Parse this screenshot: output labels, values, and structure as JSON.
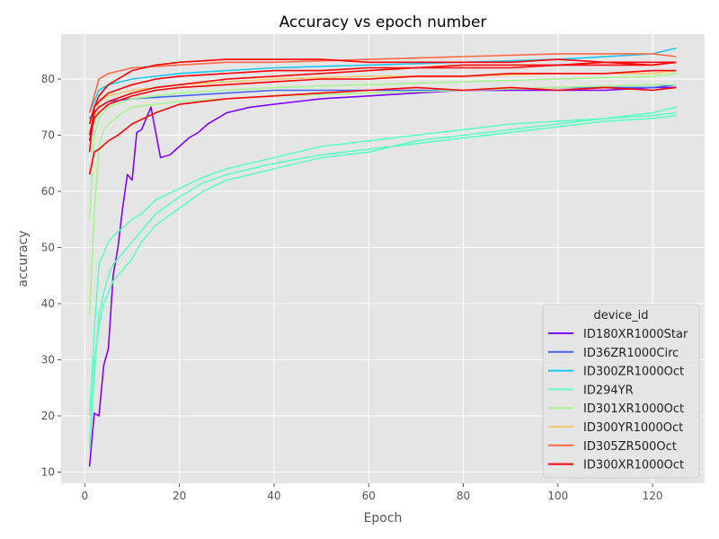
{
  "chart_data": {
    "type": "line",
    "title": "Accuracy vs epoch number",
    "xlabel": "Epoch",
    "ylabel": "accuracy",
    "xlim": [
      -5,
      131
    ],
    "ylim": [
      8,
      88
    ],
    "xticks": [
      0,
      20,
      40,
      60,
      80,
      100,
      120
    ],
    "yticks": [
      10,
      20,
      30,
      40,
      50,
      60,
      70,
      80
    ],
    "grid": true,
    "legend": {
      "title": "device_id",
      "placement": "lower-right",
      "entries": [
        {
          "name": "ID180XR1000Star",
          "color": "#8000ff"
        },
        {
          "name": "ID36ZR1000Circ",
          "color": "#4062fa"
        },
        {
          "name": "ID300ZR1000Oct",
          "color": "#1ac7f0"
        },
        {
          "name": "ID294YR",
          "color": "#5effc4"
        },
        {
          "name": "ID301XR1000Oct",
          "color": "#a6f68f"
        },
        {
          "name": "ID300YR1000Oct",
          "color": "#f6c76b"
        },
        {
          "name": "ID305ZR500Oct",
          "color": "#ff6a44"
        },
        {
          "name": "ID300XR1000Oct",
          "color": "#ff0000"
        }
      ]
    },
    "series": [
      {
        "name": "ID180XR1000Star",
        "color": "#8000ff",
        "x": [
          1,
          2,
          3,
          4,
          5,
          6,
          7,
          8,
          9,
          10,
          11,
          12,
          14,
          16,
          18,
          20,
          22,
          24,
          26,
          28,
          30,
          35,
          40,
          45,
          50,
          60,
          70,
          80,
          90,
          100,
          110,
          120,
          125
        ],
        "y": [
          11,
          20.5,
          20,
          29,
          32,
          45,
          50,
          57,
          63,
          62,
          70.5,
          71,
          75,
          66,
          66.5,
          68,
          69.5,
          70.5,
          72,
          73,
          74,
          75,
          75.5,
          76,
          76.5,
          77,
          77.5,
          78,
          78,
          78,
          78,
          78.5,
          78.5
        ]
      },
      {
        "name": "ID36ZR1000Circ",
        "color": "#4062fa",
        "x": [
          1,
          3,
          5,
          10,
          20,
          30,
          40,
          60,
          80,
          100,
          120,
          125
        ],
        "y": [
          73,
          75,
          76,
          76.5,
          77,
          77.5,
          78,
          78,
          78,
          78.5,
          78.5,
          79
        ]
      },
      {
        "name": "ID300ZR1000Oct",
        "color": "#1ac7f0",
        "x": [
          1,
          3,
          5,
          10,
          20,
          30,
          40,
          60,
          80,
          100,
          120,
          125
        ],
        "y": [
          74,
          78,
          79,
          80,
          81,
          81.5,
          82,
          82.5,
          83,
          83.5,
          84.5,
          85.5
        ]
      },
      {
        "name": "ID294YR",
        "color": "#5effc4",
        "x": [
          1,
          2,
          3,
          4,
          5,
          6,
          8,
          10,
          12,
          15,
          20,
          25,
          30,
          40,
          50,
          60,
          70,
          80,
          90,
          100,
          110,
          120,
          125
        ],
        "y": [
          15,
          27,
          38,
          42,
          45,
          47,
          49,
          51,
          53,
          56,
          59,
          61.5,
          63,
          65,
          66.5,
          67.5,
          68.5,
          69.5,
          70.5,
          71.5,
          72.5,
          73,
          73.5
        ]
      },
      {
        "name": "ID294YR",
        "color": "#5effc4",
        "x": [
          1,
          2,
          3,
          4,
          5,
          6,
          8,
          10,
          12,
          15,
          20,
          25,
          30,
          40,
          50,
          60,
          70,
          80,
          90,
          100,
          110,
          120,
          125
        ],
        "y": [
          20,
          35,
          47,
          49,
          51,
          52,
          53.5,
          55,
          56,
          58.5,
          60.5,
          62.5,
          64,
          66,
          68,
          69,
          70,
          71,
          72,
          72.5,
          73,
          73.5,
          74
        ]
      },
      {
        "name": "ID294YR",
        "color": "#5effc4",
        "x": [
          1,
          2,
          3,
          4,
          5,
          6,
          8,
          10,
          12,
          15,
          20,
          25,
          30,
          40,
          50,
          60,
          70,
          80,
          90,
          100,
          110,
          120,
          125
        ],
        "y": [
          14,
          30,
          36,
          40,
          42,
          44,
          46,
          48,
          51,
          54,
          57,
          60,
          62,
          64,
          66,
          67,
          69,
          70,
          71,
          72,
          73,
          74,
          75
        ]
      },
      {
        "name": "ID301XR1000Oct",
        "color": "#a6f68f",
        "x": [
          1,
          2,
          3,
          4,
          5,
          8,
          10,
          15,
          20,
          30,
          40,
          60,
          80,
          100,
          120,
          125
        ],
        "y": [
          38,
          56,
          68,
          71,
          72,
          74,
          75,
          75.5,
          76,
          76.5,
          77,
          77.5,
          78,
          78.5,
          79,
          79
        ]
      },
      {
        "name": "ID301XR1000Oct",
        "color": "#a6f68f",
        "x": [
          1,
          2,
          3,
          5,
          10,
          20,
          30,
          40,
          60,
          80,
          100,
          120,
          125
        ],
        "y": [
          55,
          70,
          73,
          75,
          76.5,
          77.5,
          78,
          78.5,
          79,
          79.5,
          80,
          80.5,
          81
        ]
      },
      {
        "name": "ID300YR1000Oct",
        "color": "#f6c76b",
        "x": [
          1,
          3,
          5,
          10,
          20,
          30,
          40,
          60,
          80,
          100,
          120,
          125
        ],
        "y": [
          70,
          76,
          77,
          78,
          79,
          79.5,
          80,
          80.5,
          80.5,
          81,
          81,
          81.5
        ]
      },
      {
        "name": "ID305ZR500Oct",
        "color": "#ff6a44",
        "x": [
          1,
          3,
          5,
          10,
          20,
          30,
          40,
          60,
          80,
          100,
          120,
          125
        ],
        "y": [
          74,
          80,
          81,
          82,
          82.5,
          83,
          83,
          83.5,
          84,
          84.5,
          84.5,
          84
        ]
      },
      {
        "name": "ID300XR1000Oct",
        "color": "#ff0000",
        "x": [
          1,
          2,
          3,
          5,
          7,
          10,
          15,
          20,
          30,
          40,
          50,
          60,
          70,
          80,
          90,
          100,
          110,
          120,
          125
        ],
        "y": [
          63,
          67,
          67.5,
          69,
          70,
          72,
          74,
          75.5,
          76.5,
          77,
          77.5,
          78,
          78.5,
          78,
          78.5,
          78,
          78.5,
          78,
          78.5
        ]
      },
      {
        "name": "ID300XR1000Oct",
        "color": "#ff0000",
        "x": [
          1,
          2,
          3,
          5,
          10,
          15,
          20,
          30,
          40,
          50,
          60,
          70,
          80,
          90,
          100,
          110,
          120,
          125
        ],
        "y": [
          69,
          73,
          74,
          75.5,
          77,
          78,
          78.5,
          79,
          79.5,
          80,
          80,
          80.5,
          80.5,
          81,
          81,
          81,
          81.5,
          81.5
        ]
      },
      {
        "name": "ID300XR1000Oct",
        "color": "#ff0000",
        "x": [
          1,
          2,
          3,
          5,
          10,
          15,
          20,
          30,
          40,
          50,
          60,
          70,
          80,
          90,
          100,
          110,
          120,
          125
        ],
        "y": [
          70,
          74,
          75,
          76,
          77.5,
          78.5,
          79,
          80,
          80.5,
          81,
          81.5,
          82,
          82,
          82,
          82.5,
          82.5,
          82.5,
          83
        ]
      },
      {
        "name": "ID300XR1000Oct",
        "color": "#ff0000",
        "x": [
          1,
          2,
          3,
          5,
          10,
          15,
          20,
          30,
          40,
          50,
          60,
          70,
          80,
          90,
          100,
          110,
          120,
          125
        ],
        "y": [
          72,
          75,
          76,
          77.5,
          79,
          80,
          80.5,
          81,
          81.5,
          81.5,
          82,
          82,
          82.5,
          82.5,
          82.5,
          83,
          83,
          83
        ]
      },
      {
        "name": "ID300XR1000Oct",
        "color": "#ff0000",
        "x": [
          1,
          2,
          3,
          5,
          8,
          10,
          15,
          20,
          30,
          40,
          50,
          60,
          70,
          80,
          90,
          100,
          110,
          120,
          125
        ],
        "y": [
          67,
          75,
          77,
          79,
          80.5,
          81.5,
          82.5,
          83,
          83.5,
          83.5,
          83.5,
          83,
          83,
          83,
          83,
          83.5,
          83,
          82.5,
          83
        ]
      }
    ]
  }
}
